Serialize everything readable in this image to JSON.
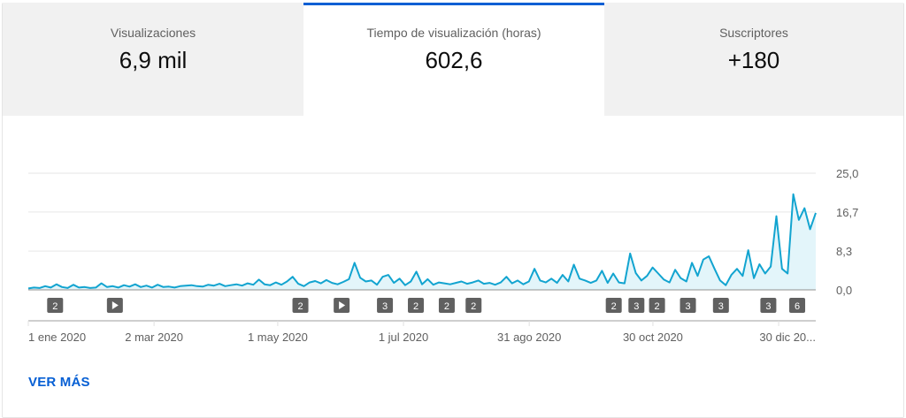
{
  "tabs": [
    {
      "label": "Visualizaciones",
      "value": "6,9 mil",
      "selected": false
    },
    {
      "label": "Tiempo de visualización (horas)",
      "value": "602,6",
      "selected": true
    },
    {
      "label": "Suscriptores",
      "value": "+180",
      "selected": false
    }
  ],
  "see_more": "VER MÁS",
  "colors": {
    "accent": "#065fd4",
    "line": "#12a4d0",
    "fill": "#e3f5fa",
    "marker": "#606060"
  },
  "chart_data": {
    "type": "area",
    "date_range": [
      "2020-01-01",
      "2021-01-17"
    ],
    "ylim": [
      0,
      25
    ],
    "yticks": [
      "0,0",
      "8,3",
      "16,7",
      "25,0"
    ],
    "ytick_values": [
      0,
      8.3,
      16.7,
      25
    ],
    "xticks": [
      {
        "label": "1 ene 2020",
        "date": "2020-01-01"
      },
      {
        "label": "2 mar 2020",
        "date": "2020-03-02"
      },
      {
        "label": "1 may 2020",
        "date": "2020-05-01"
      },
      {
        "label": "1 jul 2020",
        "date": "2020-07-01"
      },
      {
        "label": "31 ago 2020",
        "date": "2020-08-31"
      },
      {
        "label": "30 oct 2020",
        "date": "2020-10-30"
      },
      {
        "label": "30 dic 20...",
        "date": "2020-12-30"
      }
    ],
    "grid": true,
    "values": [
      0.3,
      0.5,
      0.4,
      0.8,
      0.5,
      1.2,
      0.6,
      0.4,
      1.1,
      0.5,
      0.6,
      0.4,
      0.5,
      1.4,
      0.6,
      0.8,
      0.5,
      1.0,
      0.7,
      1.2,
      0.6,
      0.9,
      0.5,
      1.1,
      0.6,
      0.7,
      0.5,
      0.8,
      0.9,
      1.0,
      0.8,
      0.7,
      1.1,
      0.9,
      1.3,
      0.8,
      1.0,
      1.2,
      0.9,
      1.4,
      1.1,
      2.2,
      1.2,
      1.0,
      1.6,
      1.1,
      1.8,
      2.8,
      1.3,
      0.8,
      1.6,
      1.9,
      1.4,
      2.1,
      1.5,
      1.2,
      1.7,
      2.3,
      5.8,
      2.6,
      1.8,
      2.0,
      1.1,
      2.8,
      3.2,
      1.5,
      2.4,
      1.0,
      1.8,
      3.9,
      1.2,
      2.3,
      1.1,
      1.6,
      1.4,
      1.2,
      1.5,
      1.8,
      1.3,
      1.6,
      2.0,
      1.3,
      1.5,
      1.1,
      1.6,
      2.8,
      1.4,
      2.0,
      1.2,
      1.8,
      4.5,
      2.0,
      1.6,
      2.4,
      1.5,
      3.2,
      1.8,
      5.4,
      2.4,
      2.0,
      1.5,
      2.0,
      4.1,
      1.5,
      3.5,
      1.6,
      1.4,
      7.8,
      3.6,
      2.0,
      3.0,
      4.8,
      3.5,
      2.2,
      1.6,
      4.3,
      2.5,
      1.8,
      5.8,
      3.0,
      6.5,
      7.2,
      4.5,
      2.0,
      1.0,
      3.2,
      4.5,
      3.0,
      8.5,
      2.5,
      5.5,
      3.5,
      5.0,
      15.8,
      4.5,
      3.5,
      20.5,
      15.0,
      17.5,
      13.0,
      16.5
    ],
    "annotations": [
      {
        "label": "2",
        "date": "2020-01-14",
        "type": "count"
      },
      {
        "label": "",
        "date": "2020-02-12",
        "type": "play"
      },
      {
        "label": "2",
        "date": "2020-05-12",
        "type": "count"
      },
      {
        "label": "",
        "date": "2020-06-01",
        "type": "play"
      },
      {
        "label": "3",
        "date": "2020-06-22",
        "type": "count"
      },
      {
        "label": "2",
        "date": "2020-07-07",
        "type": "count"
      },
      {
        "label": "2",
        "date": "2020-07-22",
        "type": "count"
      },
      {
        "label": "2",
        "date": "2020-08-04",
        "type": "count"
      },
      {
        "label": "2",
        "date": "2020-10-11",
        "type": "count"
      },
      {
        "label": "3",
        "date": "2020-10-22",
        "type": "count"
      },
      {
        "label": "2",
        "date": "2020-11-01",
        "type": "count"
      },
      {
        "label": "3",
        "date": "2020-11-16",
        "type": "count"
      },
      {
        "label": "3",
        "date": "2020-12-02",
        "type": "count"
      },
      {
        "label": "3",
        "date": "2020-12-25",
        "type": "count"
      },
      {
        "label": "6",
        "date": "2021-01-08",
        "type": "count"
      }
    ]
  }
}
